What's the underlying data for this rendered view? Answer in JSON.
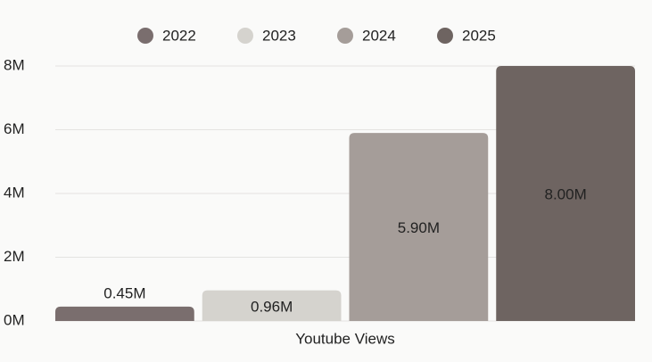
{
  "chart_data": {
    "type": "bar",
    "categories": [
      "Youtube Views"
    ],
    "series": [
      {
        "name": "2022",
        "color": "#7a6e6e",
        "values": [
          0.45
        ],
        "value_labels": [
          "0.45M"
        ]
      },
      {
        "name": "2023",
        "color": "#d5d3ce",
        "values": [
          0.96
        ],
        "value_labels": [
          "0.96M"
        ]
      },
      {
        "name": "2024",
        "color": "#a59d99",
        "values": [
          5.9
        ],
        "value_labels": [
          "5.90M"
        ]
      },
      {
        "name": "2025",
        "color": "#6e6461",
        "values": [
          8.0
        ],
        "value_labels": [
          "8.00M"
        ]
      }
    ],
    "ylim": [
      0,
      8
    ],
    "yticks": [
      {
        "value": 0,
        "label": "0M"
      },
      {
        "value": 2,
        "label": "2M"
      },
      {
        "value": 4,
        "label": "4M"
      },
      {
        "value": 6,
        "label": "6M"
      },
      {
        "value": 8,
        "label": "8M"
      }
    ],
    "grid": true,
    "legend": "top"
  }
}
